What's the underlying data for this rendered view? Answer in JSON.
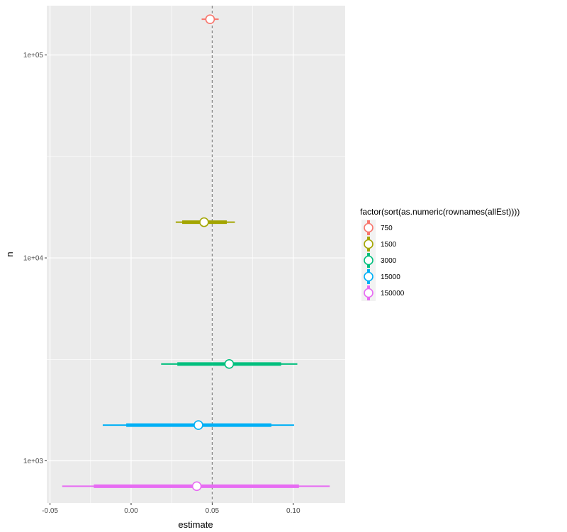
{
  "chart_data": {
    "type": "scatter",
    "subtype": "pointrange",
    "title": "",
    "xlabel": "estimate",
    "ylabel": "n",
    "xlim": [
      -0.052,
      0.132
    ],
    "ylim": [
      620,
      175000
    ],
    "y_scale": "log10",
    "grid": true,
    "reference_line": {
      "x": 0.05,
      "style": "dashed"
    },
    "x_ticks": [
      {
        "value": -0.05,
        "label": "-0.05"
      },
      {
        "value": 0.0,
        "label": "0.00"
      },
      {
        "value": 0.05,
        "label": "0.05"
      },
      {
        "value": 0.1,
        "label": "0.10"
      }
    ],
    "y_ticks": [
      {
        "value": 1000,
        "label": "1e+03"
      },
      {
        "value": 10000,
        "label": "1e+04"
      },
      {
        "value": 100000,
        "label": "1e+05"
      }
    ],
    "legend": {
      "title": "factor(sort(as.numeric(rownames(allEst))))",
      "placement": "right"
    },
    "series": [
      {
        "name": "750",
        "color": "#F8766D",
        "y": 150000,
        "estimate": 0.0487,
        "inner": [
          0.0465,
          0.051
        ],
        "outer": [
          0.0435,
          0.054
        ]
      },
      {
        "name": "1500",
        "color": "#A3A500",
        "y": 15000,
        "estimate": 0.045,
        "inner": [
          0.0315,
          0.059
        ],
        "outer": [
          0.0275,
          0.064
        ]
      },
      {
        "name": "3000",
        "color": "#00BF7D",
        "y": 3000,
        "estimate": 0.0605,
        "inner": [
          0.0285,
          0.0925
        ],
        "outer": [
          0.0185,
          0.1025
        ]
      },
      {
        "name": "15000",
        "color": "#00B0F6",
        "y": 1500,
        "estimate": 0.0415,
        "inner": [
          -0.003,
          0.0865
        ],
        "outer": [
          -0.0175,
          0.1005
        ]
      },
      {
        "name": "150000",
        "color": "#E76BF3",
        "y": 750,
        "estimate": 0.0405,
        "inner": [
          -0.023,
          0.1035
        ],
        "outer": [
          -0.0425,
          0.1225
        ]
      }
    ]
  }
}
